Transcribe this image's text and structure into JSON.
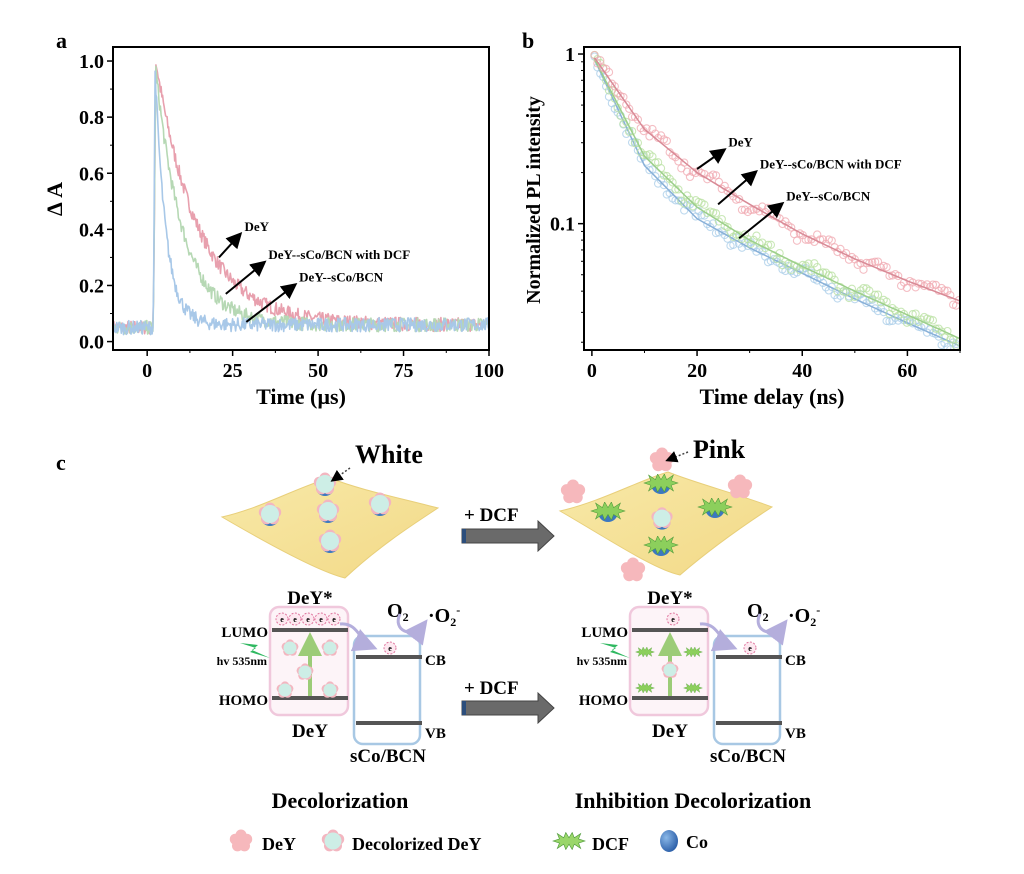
{
  "panel_labels": {
    "a": "a",
    "b": "b",
    "c": "c"
  },
  "chart_data": [
    {
      "id": "a",
      "type": "line",
      "title": "",
      "xlabel": "Time (µs)",
      "ylabel": "Δ A",
      "xlim": [
        -10,
        100
      ],
      "ylim": [
        -0.03,
        1.05
      ],
      "xticks": [
        0,
        25,
        50,
        75,
        100
      ],
      "yticks": [
        0.0,
        0.2,
        0.4,
        0.6,
        0.8,
        1.0
      ],
      "ytick_labels": [
        "0.0",
        "0.2",
        "0.4",
        "0.6",
        "0.8",
        "1.0"
      ],
      "baseline": 0.06,
      "pulse_start": 1.8,
      "series": [
        {
          "name": "DeY",
          "color": "#e8a0ae",
          "peak": 1.0,
          "tau": 12.5,
          "peak_time": 2.5
        },
        {
          "name": "DeY--sCo/BCN with DCF",
          "color": "#b6d8b4",
          "peak": 0.97,
          "tau": 8.0,
          "peak_time": 2.5
        },
        {
          "name": "DeY--sCo/BCN",
          "color": "#a8c8e8",
          "peak": 0.97,
          "tau": 3.2,
          "peak_time": 2.3
        }
      ],
      "annotations": [
        {
          "text": "DeY",
          "arrow_from": [
            21,
            0.3
          ],
          "arrow_to": [
            27,
            0.38
          ]
        },
        {
          "text": "DeY--sCo/BCN with DCF",
          "arrow_from": [
            23,
            0.17
          ],
          "arrow_to": [
            34,
            0.28
          ]
        },
        {
          "text": "DeY--sCo/BCN",
          "arrow_from": [
            29,
            0.07
          ],
          "arrow_to": [
            43,
            0.2
          ]
        }
      ],
      "legend": "none (arrow annotations)"
    },
    {
      "id": "b",
      "type": "scatter",
      "title": "",
      "xlabel": "Time delay (ns)",
      "ylabel": "Normalized PL intensity",
      "xscale": "linear",
      "yscale": "log",
      "xlim": [
        -1.5,
        70
      ],
      "ylim": [
        0.018,
        1.1
      ],
      "xticks": [
        0,
        20,
        40,
        60
      ],
      "yticks": [
        1,
        0.1
      ],
      "ytick_labels": [
        "1",
        "0.1"
      ],
      "series": [
        {
          "name": "DeY",
          "color": "#f0a8b0",
          "fit_color": "#d88a96",
          "x": [
            0,
            10,
            20,
            30,
            40,
            50,
            60,
            70
          ],
          "y": [
            1.0,
            0.36,
            0.2,
            0.13,
            0.087,
            0.062,
            0.046,
            0.035
          ]
        },
        {
          "name": "DeY--sCo/BCN with DCF",
          "color": "#b8e0a0",
          "fit_color": "#9ccf8a",
          "x": [
            0,
            10,
            20,
            30,
            40,
            50,
            60,
            70
          ],
          "y": [
            1.0,
            0.25,
            0.125,
            0.08,
            0.056,
            0.04,
            0.029,
            0.021
          ]
        },
        {
          "name": "DeY--sCo/BCN",
          "color": "#a8cce8",
          "fit_color": "#88b0d8",
          "x": [
            0,
            10,
            20,
            30,
            40,
            50,
            60,
            70
          ],
          "y": [
            1.0,
            0.22,
            0.107,
            0.072,
            0.051,
            0.036,
            0.026,
            0.019
          ]
        }
      ],
      "annotations": [
        {
          "text": "DeY",
          "arrow_from": [
            20,
            0.21
          ],
          "arrow_to": [
            25,
            0.27
          ]
        },
        {
          "text": "DeY--sCo/BCN with DCF",
          "arrow_from": [
            24,
            0.13
          ],
          "arrow_to": [
            31,
            0.2
          ]
        },
        {
          "text": "DeY--sCo/BCN",
          "arrow_from": [
            28,
            0.082
          ],
          "arrow_to": [
            36,
            0.13
          ]
        }
      ],
      "legend": "none (arrow annotations)"
    }
  ],
  "scheme": {
    "left": {
      "top_label": "White",
      "state": "DeY*",
      "lumo": "LUMO",
      "homo": "HOMO",
      "ground": "DeY",
      "excitation": "hv 535nm",
      "cb": "CB",
      "vb": "VB",
      "catalyst": "sCo/BCN",
      "o2": "O",
      "o2_sub": "2",
      "superoxide": "·O",
      "superoxide_sub": "2",
      "superoxide_sup": "-",
      "electron": "e",
      "caption": "Decolorization"
    },
    "right": {
      "top_label": "Pink",
      "state": "DeY*",
      "lumo": "LUMO",
      "homo": "HOMO",
      "ground": "DeY",
      "excitation": "hv 535nm",
      "cb": "CB",
      "vb": "VB",
      "catalyst": "sCo/BCN",
      "o2": "O",
      "o2_sub": "2",
      "superoxide": "·O",
      "superoxide_sub": "2",
      "superoxide_sup": "-",
      "electron": "e",
      "caption": "Inhibition Decolorization"
    },
    "arrow_label_top": "+ DCF",
    "arrow_label_bottom": "+ DCF",
    "legend": [
      {
        "label": "DeY",
        "icon": "dey-flower-icon"
      },
      {
        "label": "Decolorized DeY",
        "icon": "decolorized-dey-icon"
      },
      {
        "label": "DCF",
        "icon": "dcf-star-icon"
      },
      {
        "label": "Co",
        "icon": "co-sphere-icon"
      }
    ],
    "colors": {
      "sheet": "#f5e199",
      "dey_pink": "#f6b8bc",
      "decolorized": "#cdeee6",
      "dcf_green": "#8ccf5c",
      "co_blue": "#3c78c0",
      "dey_box": "#f0c8dc",
      "bcn_box": "#a8c8e4",
      "level": "#555555",
      "transfer_arrow": "#b4aedc",
      "excite_arrow": "#9ccc78",
      "bolt": "#2eb860",
      "dcf_arrow": "#6a6a6a"
    }
  }
}
